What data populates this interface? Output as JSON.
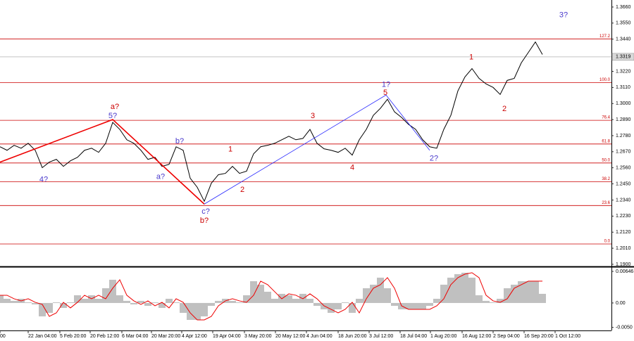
{
  "chart_data": [
    {
      "type": "line",
      "x": [
        0,
        1,
        2,
        3,
        4,
        5,
        6,
        7,
        8,
        9,
        10,
        11,
        12,
        13,
        14,
        15,
        16,
        17,
        18,
        19,
        20,
        21,
        22,
        23,
        24,
        25,
        26,
        27,
        28,
        29,
        30,
        31,
        32,
        33,
        34,
        35,
        36,
        37,
        38,
        39,
        40,
        41,
        42,
        43,
        44,
        45,
        46,
        47,
        48,
        49,
        50,
        51,
        52,
        53,
        54,
        55,
        56,
        57,
        58,
        59,
        60,
        61,
        62,
        63,
        64,
        65,
        66,
        67,
        68,
        69,
        70,
        71,
        72,
        73,
        74,
        75,
        76,
        77
      ],
      "series": [
        {
          "color": "#000000",
          "values": [
            1.2704,
            1.268,
            1.2714,
            1.2694,
            1.2728,
            1.268,
            1.2561,
            1.2599,
            1.2618,
            1.257,
            1.2608,
            1.2632,
            1.268,
            1.2694,
            1.2666,
            1.2728,
            1.2871,
            1.2823,
            1.2752,
            1.2728,
            1.268,
            1.2618,
            1.2632,
            1.257,
            1.2584,
            1.2704,
            1.268,
            1.2489,
            1.2427,
            1.2331,
            1.2455,
            1.2513,
            1.2522,
            1.257,
            1.2522,
            1.2537,
            1.2656,
            1.2704,
            1.2714,
            1.2728,
            1.2752,
            1.2776,
            1.2752,
            1.2761,
            1.2823,
            1.2728,
            1.269,
            1.268,
            1.2666,
            1.2694,
            1.2647,
            1.2752,
            1.2823,
            1.2919,
            1.2967,
            1.3029,
            1.2943,
            1.2905,
            1.2857,
            1.2823,
            1.2752,
            1.2704,
            1.2694,
            1.2823,
            1.2919,
            1.3086,
            1.3182,
            1.3239,
            1.3172,
            1.3134,
            1.311,
            1.3062,
            1.3158,
            1.3172,
            1.3278,
            1.3349,
            1.3421,
            1.3335
          ]
        }
      ],
      "xlim": [
        0,
        86.8
      ],
      "xticks": [
        {
          "value": 0,
          "label": "00"
        },
        {
          "value": 4,
          "label": "22 Jan 04:00"
        },
        {
          "value": 8.5,
          "label": "5 Feb 20:00"
        },
        {
          "value": 12.8,
          "label": "20 Feb 12:00"
        },
        {
          "value": 17.3,
          "label": "6 Mar 04:00"
        },
        {
          "value": 21.5,
          "label": "20 Mar 20:00"
        },
        {
          "value": 25.8,
          "label": "4 Apr 12:00"
        },
        {
          "value": 30.2,
          "label": "19 Apr 04:00"
        },
        {
          "value": 34.7,
          "label": "3 May 20:00"
        },
        {
          "value": 39.1,
          "label": "20 May 12:00"
        },
        {
          "value": 43.5,
          "label": "4 Jun 04:00"
        },
        {
          "value": 48,
          "label": "18 Jun 20:00"
        },
        {
          "value": 52.4,
          "label": "3 Jul 12:00"
        },
        {
          "value": 56.8,
          "label": "18 Jul 04:00"
        },
        {
          "value": 61.1,
          "label": "1 Aug 20:00"
        },
        {
          "value": 65.6,
          "label": "16 Aug 12:00"
        },
        {
          "value": 70,
          "label": "2 Sep 04:00"
        },
        {
          "value": 74.4,
          "label": "16 Sep 20:00"
        },
        {
          "value": 78.8,
          "label": "1 Oct 12:00"
        }
      ],
      "ylim": [
        1.189,
        1.3708
      ],
      "yticks": [
        {
          "value": 1.366,
          "label": "1.3660"
        },
        {
          "value": 1.355,
          "label": "1.3550"
        },
        {
          "value": 1.344,
          "label": "1.3440"
        },
        {
          "value": 1.322,
          "label": "1.3220"
        },
        {
          "value": 1.311,
          "label": "1.3110"
        },
        {
          "value": 1.3,
          "label": "1.3000"
        },
        {
          "value": 1.289,
          "label": "1.2890"
        },
        {
          "value": 1.278,
          "label": "1.2780"
        },
        {
          "value": 1.267,
          "label": "1.2670"
        },
        {
          "value": 1.256,
          "label": "1.2560"
        },
        {
          "value": 1.245,
          "label": "1.2450"
        },
        {
          "value": 1.234,
          "label": "1.2340"
        },
        {
          "value": 1.223,
          "label": "1.2230"
        },
        {
          "value": 1.212,
          "label": "1.2120"
        },
        {
          "value": 1.201,
          "label": "1.2010"
        },
        {
          "value": 1.19,
          "label": "1.1900"
        }
      ],
      "current_price": {
        "value": 1.3319,
        "label": "1.3319"
      },
      "level_color": "#cc0000",
      "levels": [
        {
          "value": 1.3442,
          "label": "127.2"
        },
        {
          "value": 1.3143,
          "label": "100.0"
        },
        {
          "value": 1.2885,
          "label": "76.4"
        },
        {
          "value": 1.2723,
          "label": "61.8"
        },
        {
          "value": 1.2593,
          "label": "50.0"
        },
        {
          "value": 1.2464,
          "label": "38.2"
        },
        {
          "value": 1.2302,
          "label": "23.6"
        },
        {
          "value": 1.2039,
          "label": "0.0"
        }
      ],
      "wave_lines": [
        {
          "color": "#ee0000",
          "width": 1.6,
          "x": [
            0,
            16,
            29
          ],
          "y": [
            1.2599,
            1.289,
            1.2312
          ]
        },
        {
          "color": "#2222ff",
          "width": 0.8,
          "x": [
            29,
            54.8,
            61
          ],
          "y": [
            1.2312,
            1.3058,
            1.268
          ]
        }
      ],
      "annotations": [
        {
          "text": "a?",
          "x": 16.3,
          "y": 1.2976,
          "color": "#cc0000"
        },
        {
          "text": "5?",
          "x": 16.0,
          "y": 1.2914,
          "color": "#4a3acc"
        },
        {
          "text": "4?",
          "x": 6.2,
          "y": 1.2479,
          "color": "#4a3acc"
        },
        {
          "text": "a?",
          "x": 22.8,
          "y": 1.2498,
          "color": "#4a3acc"
        },
        {
          "text": "b?",
          "x": 25.5,
          "y": 1.2742,
          "color": "#4a3acc"
        },
        {
          "text": "c?",
          "x": 29.2,
          "y": 1.2259,
          "color": "#4a3acc"
        },
        {
          "text": "b?",
          "x": 29.0,
          "y": 1.2197,
          "color": "#cc0000"
        },
        {
          "text": "1",
          "x": 32.7,
          "y": 1.2685,
          "color": "#cc0000"
        },
        {
          "text": "2",
          "x": 34.4,
          "y": 1.2408,
          "color": "#cc0000"
        },
        {
          "text": "3",
          "x": 44.4,
          "y": 1.2914,
          "color": "#cc0000"
        },
        {
          "text": "4",
          "x": 50.0,
          "y": 1.2561,
          "color": "#cc0000"
        },
        {
          "text": "5",
          "x": 54.7,
          "y": 1.3072,
          "color": "#cc0000"
        },
        {
          "text": "1?",
          "x": 54.8,
          "y": 1.3129,
          "color": "#4a3acc"
        },
        {
          "text": "2?",
          "x": 61.6,
          "y": 1.2623,
          "color": "#4a3acc"
        },
        {
          "text": "1",
          "x": 66.9,
          "y": 1.3316,
          "color": "#cc0000"
        },
        {
          "text": "2",
          "x": 71.6,
          "y": 1.2962,
          "color": "#cc0000"
        },
        {
          "text": "3?",
          "x": 80.0,
          "y": 1.3603,
          "color": "#4a3acc"
        }
      ]
    },
    {
      "type": "combo",
      "x": [
        0,
        1,
        2,
        3,
        4,
        5,
        6,
        7,
        8,
        9,
        10,
        11,
        12,
        13,
        14,
        15,
        16,
        17,
        18,
        19,
        20,
        21,
        22,
        23,
        24,
        25,
        26,
        27,
        28,
        29,
        30,
        31,
        32,
        33,
        34,
        35,
        36,
        37,
        38,
        39,
        40,
        41,
        42,
        43,
        44,
        45,
        46,
        47,
        48,
        49,
        50,
        51,
        52,
        53,
        54,
        55,
        56,
        57,
        58,
        59,
        60,
        61,
        62,
        63,
        64,
        65,
        66,
        67,
        68,
        69,
        70,
        71,
        72,
        73,
        74,
        75,
        76,
        77
      ],
      "xlim": [
        0,
        86.8
      ],
      "ylim": [
        -0.00562,
        0.00718
      ],
      "yticks": [
        0.00646,
        {
          "value": 0,
          "label": "0.00"
        },
        {
          "value": -0.005,
          "label": "-0.0050"
        }
      ],
      "series": [
        {
          "kind": "bar",
          "color": "#c0c0c0",
          "values": [
            0.00158,
            0.00086,
            0.00043,
            0.00086,
            0.00014,
            -0.00029,
            -0.00274,
            -0.00202,
            0.00014,
            -0.00101,
            0.00014,
            0.00158,
            0.00086,
            0.00158,
            0.00086,
            0.00302,
            0.00475,
            0.00158,
            0.00043,
            -0.00029,
            0.00043,
            -0.00058,
            0.00014,
            -0.00101,
            0.00086,
            0.00014,
            -0.00202,
            -0.00346,
            -0.00346,
            -0.00274,
            -0.00058,
            0.00043,
            0.00086,
            0.00043,
            0.00014,
            0.00158,
            0.00446,
            0.00374,
            0.0023,
            0.00086,
            0.00187,
            0.00158,
            0.00086,
            0.00187,
            0.00086,
            -0.00058,
            -0.0013,
            -0.00202,
            -0.0013,
            0.00014,
            -0.00202,
            0.00086,
            0.00302,
            0.00374,
            0.00518,
            0.00302,
            -0.00058,
            -0.0013,
            -0.0013,
            -0.0013,
            -0.0013,
            -0.00058,
            0.00086,
            0.00374,
            0.00518,
            0.0059,
            0.00619,
            0.00518,
            0.00158,
            0.00043,
            0.00014,
            0.00086,
            0.00302,
            0.00374,
            0.00446,
            0.00446,
            0.00446,
            0.00187
          ]
        },
        {
          "kind": "line",
          "color": "#ee0000",
          "values": [
            0.00158,
            0.00158,
            0.00086,
            0.00043,
            0.00086,
            0.00014,
            -0.00029,
            -0.00274,
            -0.00202,
            0.00014,
            -0.00101,
            0.00014,
            0.00158,
            0.00086,
            0.00158,
            0.00086,
            0.00302,
            0.00475,
            0.00158,
            0.00043,
            -0.00029,
            0.00043,
            -0.00058,
            0.00014,
            -0.00101,
            0.00086,
            0.00014,
            -0.00202,
            -0.00346,
            -0.00346,
            -0.00274,
            -0.00058,
            0.00043,
            0.00086,
            0.00043,
            0.00014,
            0.00158,
            0.00446,
            0.00374,
            0.0023,
            0.00086,
            0.00187,
            0.00158,
            0.00086,
            0.00187,
            0.00086,
            -0.00058,
            -0.0013,
            -0.00202,
            -0.0013,
            0.00014,
            -0.00202,
            0.00086,
            0.00302,
            0.00374,
            0.00518,
            0.00302,
            -0.00058,
            -0.0013,
            -0.0013,
            -0.0013,
            -0.0013,
            -0.00058,
            0.00086,
            0.00374,
            0.00518,
            0.0059,
            0.00619,
            0.00518,
            0.00158,
            0.00043,
            0.00014,
            0.00086,
            0.00302,
            0.00374,
            0.00446,
            0.00446,
            0.00446
          ]
        }
      ]
    }
  ]
}
